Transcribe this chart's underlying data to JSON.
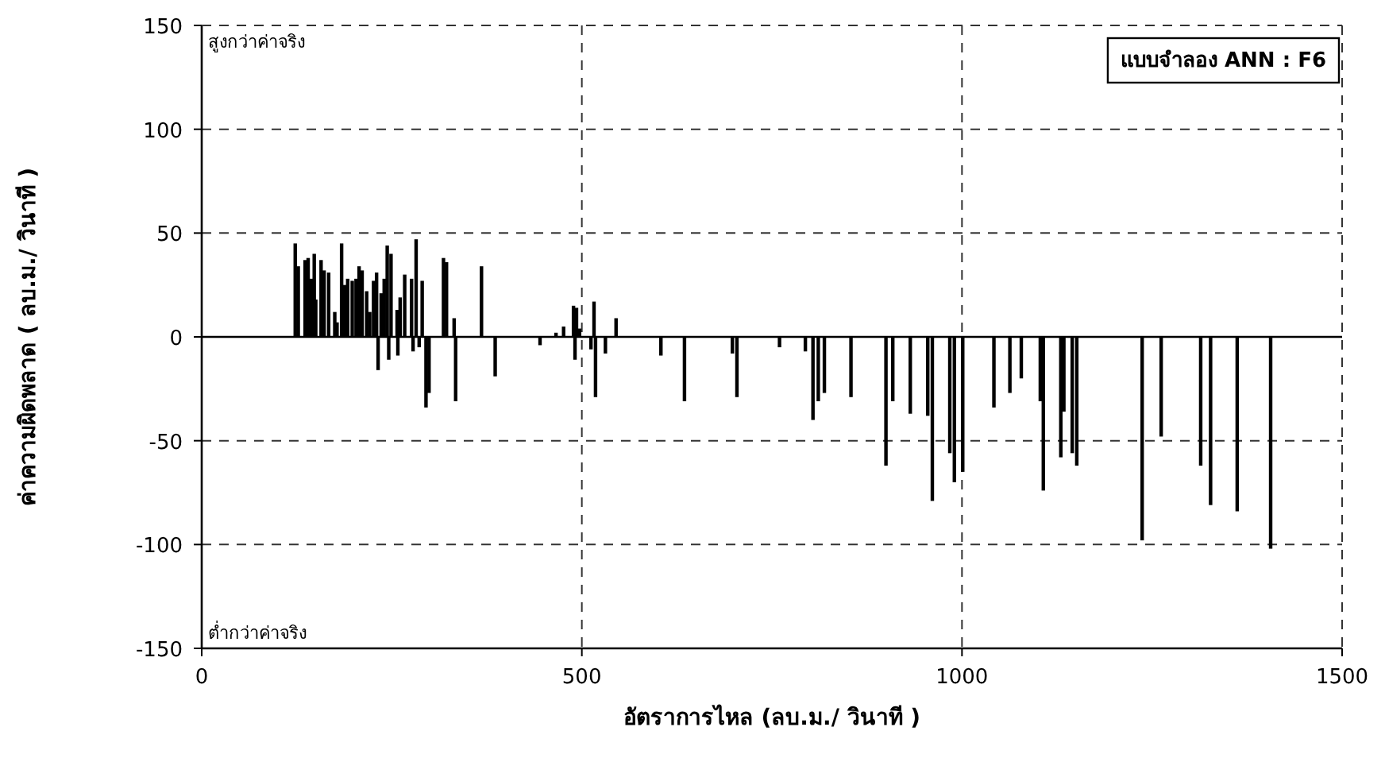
{
  "chart_data": {
    "type": "bar",
    "xlabel": "อัตราการไหล (ลบ.ม./ วินาที )",
    "ylabel": "ค่าความผิดพลาด ( ลบ.ม./ วินาที )",
    "xlim": [
      0,
      1500
    ],
    "xticks": [
      0,
      500,
      1000,
      1500
    ],
    "ylim": [
      -150,
      150
    ],
    "yticks": [
      -150,
      -100,
      -50,
      0,
      50,
      100,
      150
    ],
    "grid": true,
    "ref_lines": [
      {
        "axis": "y",
        "value": 0
      }
    ],
    "annotations": [
      "แบบจำลอง ANN : F6",
      "สูงกว่าค่าจริง",
      "ต่ำกว่าค่าจริง"
    ],
    "x": [
      123,
      127,
      136,
      140,
      144,
      148,
      150,
      157,
      161,
      167,
      175,
      178,
      184,
      188,
      192,
      198,
      203,
      207,
      211,
      217,
      221,
      226,
      230,
      232,
      236,
      240,
      244,
      246,
      249,
      257,
      258,
      261,
      267,
      276,
      278,
      282,
      286,
      290,
      295,
      299,
      318,
      322,
      332,
      334,
      368,
      386,
      445,
      466,
      476,
      489,
      491,
      493,
      497,
      512,
      516,
      518,
      531,
      545,
      604,
      635,
      698,
      704,
      760,
      794,
      804,
      811,
      819,
      854,
      900,
      909,
      932,
      955,
      961,
      984,
      990,
      1001,
      1042,
      1063,
      1078,
      1103,
      1107,
      1130,
      1134,
      1145,
      1151,
      1237,
      1262,
      1314,
      1327,
      1362,
      1406
    ],
    "series": [
      {
        "color": "#000000",
        "values": [
          45,
          34,
          37,
          38,
          28,
          40,
          18,
          37,
          32,
          31,
          12,
          7,
          45,
          25,
          28,
          27,
          28,
          34,
          32,
          22,
          12,
          27,
          31,
          -16,
          21,
          28,
          44,
          -11,
          40,
          13,
          -9,
          19,
          30,
          28,
          -7,
          47,
          -5,
          27,
          -34,
          -27,
          38,
          36,
          9,
          -31,
          34,
          -19,
          -4,
          2,
          5,
          15,
          -11,
          14,
          4,
          -6,
          17,
          -29,
          -8,
          9,
          -9,
          -31,
          -8,
          -29,
          -5,
          -7,
          -40,
          -31,
          -27,
          -29,
          -62,
          -31,
          -37,
          -38,
          -79,
          -56,
          -70,
          -65,
          -34,
          -27,
          -20,
          -31,
          -74,
          -58,
          -36,
          -56,
          -62,
          -98,
          -48,
          -62,
          -81,
          -84,
          -102
        ]
      }
    ]
  }
}
